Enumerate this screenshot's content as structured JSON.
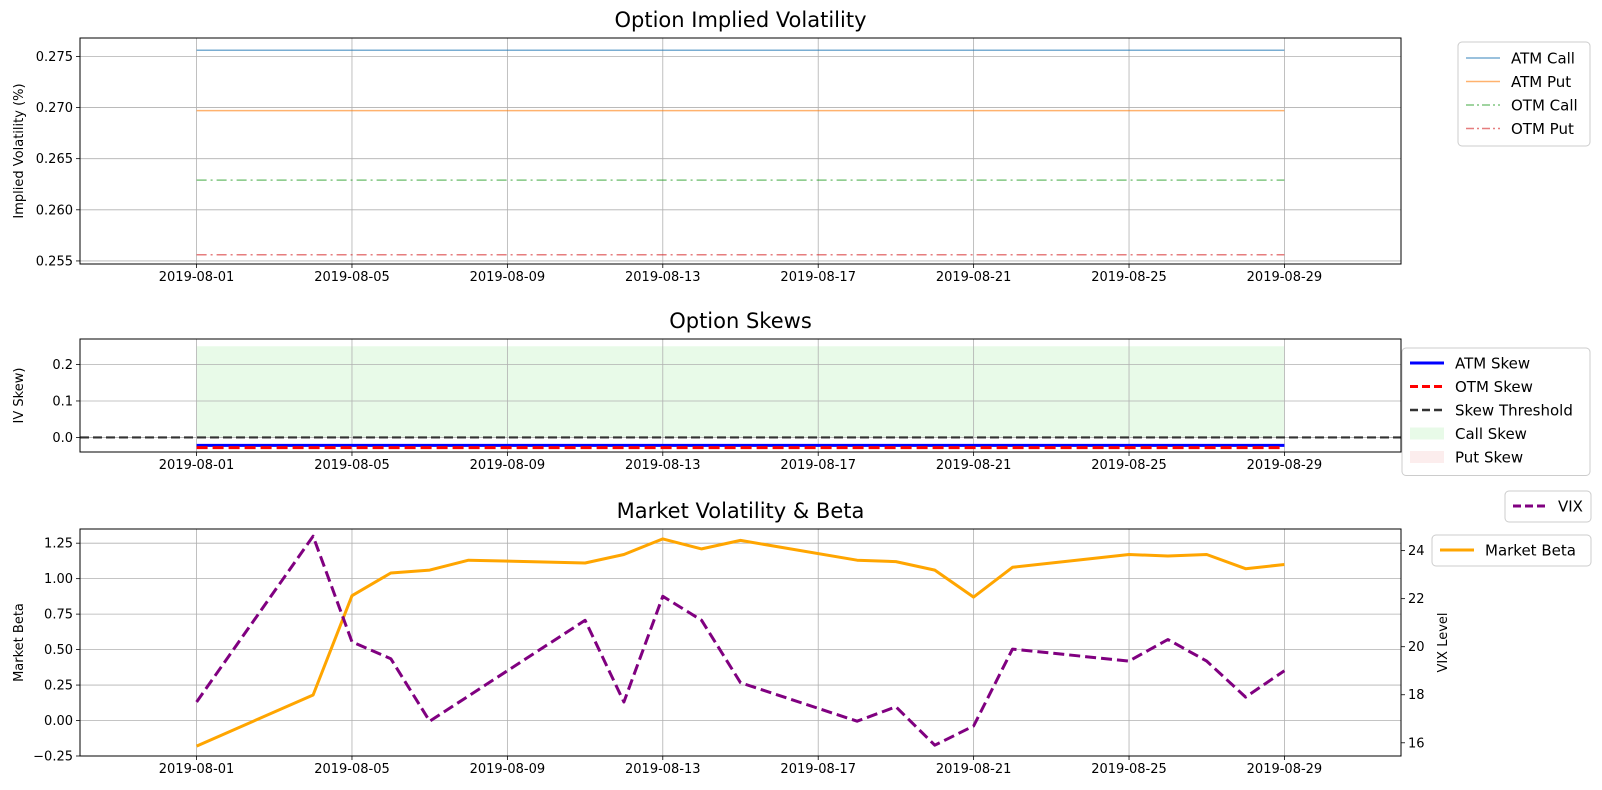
{
  "chart_data": [
    {
      "type": "line",
      "title": "Option Implied Volatility",
      "xlabel": "",
      "ylabel": "Implied Volatility (%)",
      "x_range": [
        "2019-07-29",
        "2019-09-01"
      ],
      "ylim": [
        0.2547,
        0.2768
      ],
      "yticks": [
        "0.255",
        "0.260",
        "0.265",
        "0.270",
        "0.275"
      ],
      "xticks": [
        "2019-08-01",
        "2019-08-05",
        "2019-08-09",
        "2019-08-13",
        "2019-08-17",
        "2019-08-21",
        "2019-08-25",
        "2019-08-29"
      ],
      "grid": true,
      "legend_position": "outside-right",
      "series": [
        {
          "name": "ATM Call",
          "color": "#1f77b4",
          "dash": "solid",
          "x": [
            "2019-08-01",
            "2019-08-29"
          ],
          "y": [
            0.2756,
            0.2756
          ]
        },
        {
          "name": "ATM Put",
          "color": "#ff7f0e",
          "dash": "solid",
          "x": [
            "2019-08-01",
            "2019-08-29"
          ],
          "y": [
            0.2697,
            0.2697
          ]
        },
        {
          "name": "OTM Call",
          "color": "#2ca02c",
          "dash": "dashdot",
          "x": [
            "2019-08-01",
            "2019-08-29"
          ],
          "y": [
            0.2629,
            0.2629
          ]
        },
        {
          "name": "OTM Put",
          "color": "#d62728",
          "dash": "dashdot",
          "x": [
            "2019-08-01",
            "2019-08-29"
          ],
          "y": [
            0.2556,
            0.2556
          ]
        }
      ]
    },
    {
      "type": "line",
      "title": "Option Skews",
      "xlabel": "",
      "ylabel": "IV Skew)",
      "x_range": [
        "2019-07-29",
        "2019-09-01"
      ],
      "ylim": [
        -0.04,
        0.27
      ],
      "yticks": [
        "0.0",
        "0.1",
        "0.2"
      ],
      "xticks": [
        "2019-08-01",
        "2019-08-05",
        "2019-08-09",
        "2019-08-13",
        "2019-08-17",
        "2019-08-21",
        "2019-08-25",
        "2019-08-29"
      ],
      "grid": true,
      "legend_position": "outside-right",
      "series": [
        {
          "name": "ATM Skew",
          "color": "#0000ff",
          "dash": "solid",
          "x": [
            "2019-08-01",
            "2019-08-29"
          ],
          "y": [
            -0.022,
            -0.022
          ]
        },
        {
          "name": "OTM Skew",
          "color": "#ff0000",
          "dash": "dashed",
          "x": [
            "2019-08-01",
            "2019-08-29"
          ],
          "y": [
            -0.028,
            -0.028
          ]
        }
      ],
      "threshold": {
        "name": "Skew Threshold",
        "color": "#333333",
        "value": 0.0
      },
      "shaded_regions": [
        {
          "name": "Call Skew",
          "color": "#ccf5cc",
          "x": [
            "2019-08-01",
            "2019-08-29"
          ],
          "y": [
            0.0,
            0.25
          ]
        },
        {
          "name": "Put Skew",
          "color": "#f9d6d6",
          "x": [
            "2019-08-01",
            "2019-08-29"
          ],
          "y": [
            0.0,
            0.0
          ]
        }
      ]
    },
    {
      "type": "line",
      "title": "Market Volatility & Beta",
      "xlabel": "",
      "ylabel": "Market Beta",
      "y2label": "VIX Level",
      "x_range": [
        "2019-07-29",
        "2019-09-01"
      ],
      "ylim": [
        -0.25,
        1.35
      ],
      "yticks": [
        "−0.25",
        "0.00",
        "0.25",
        "0.50",
        "0.75",
        "1.00",
        "1.25"
      ],
      "y2lim": [
        15.45,
        24.9
      ],
      "y2ticks": [
        "16",
        "18",
        "20",
        "22",
        "24"
      ],
      "xticks": [
        "2019-08-01",
        "2019-08-05",
        "2019-08-09",
        "2019-08-13",
        "2019-08-17",
        "2019-08-21",
        "2019-08-25",
        "2019-08-29"
      ],
      "grid": true,
      "legend_position": "outside-right",
      "series": [
        {
          "name": "Market Beta",
          "axis": "left",
          "color": "#ffa500",
          "dash": "solid",
          "x": [
            "2019-08-01",
            "2019-08-04",
            "2019-08-05",
            "2019-08-06",
            "2019-08-07",
            "2019-08-08",
            "2019-08-11",
            "2019-08-12",
            "2019-08-13",
            "2019-08-14",
            "2019-08-15",
            "2019-08-18",
            "2019-08-19",
            "2019-08-20",
            "2019-08-21",
            "2019-08-22",
            "2019-08-25",
            "2019-08-26",
            "2019-08-27",
            "2019-08-28",
            "2019-08-29"
          ],
          "y": [
            -0.18,
            0.18,
            0.88,
            1.04,
            1.06,
            1.13,
            1.11,
            1.17,
            1.28,
            1.21,
            1.27,
            1.13,
            1.12,
            1.06,
            0.87,
            1.08,
            1.17,
            1.16,
            1.17,
            1.07,
            1.1
          ]
        },
        {
          "name": "VIX",
          "axis": "right",
          "color": "#800080",
          "dash": "dashed",
          "x": [
            "2019-08-01",
            "2019-08-04",
            "2019-08-05",
            "2019-08-06",
            "2019-08-07",
            "2019-08-11",
            "2019-08-12",
            "2019-08-13",
            "2019-08-14",
            "2019-08-15",
            "2019-08-18",
            "2019-08-19",
            "2019-08-20",
            "2019-08-21",
            "2019-08-22",
            "2019-08-25",
            "2019-08-26",
            "2019-08-27",
            "2019-08-28",
            "2019-08-29"
          ],
          "y": [
            17.7,
            24.6,
            20.2,
            19.5,
            16.9,
            21.1,
            17.7,
            22.1,
            21.1,
            18.5,
            16.9,
            17.5,
            15.9,
            16.7,
            19.9,
            19.4,
            20.3,
            19.4,
            17.9,
            19.0
          ]
        }
      ]
    }
  ]
}
